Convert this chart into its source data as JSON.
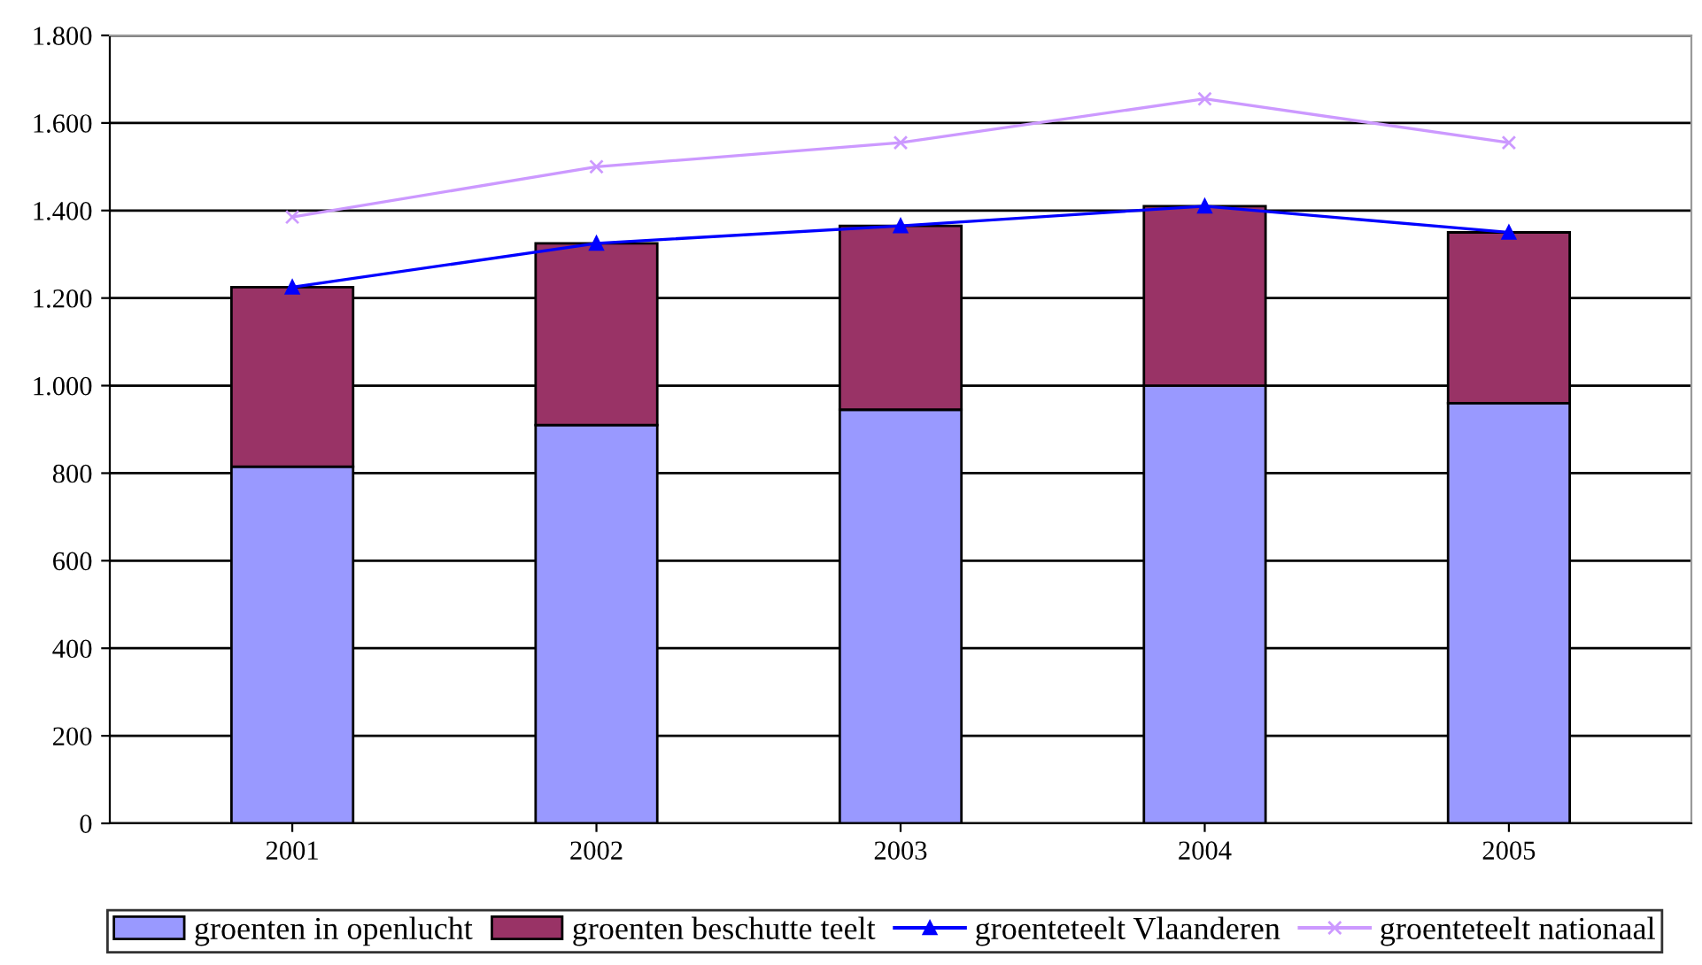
{
  "chart_data": {
    "type": "bar",
    "stacked": true,
    "categories": [
      "2001",
      "2002",
      "2003",
      "2004",
      "2005"
    ],
    "series": [
      {
        "name": "groenten in openlucht",
        "color": "#9999ff",
        "values": [
          815,
          910,
          945,
          1000,
          960
        ]
      },
      {
        "name": "groenten beschutte teelt",
        "color": "#993366",
        "values": [
          410,
          415,
          420,
          410,
          390
        ]
      },
      {
        "name": "groenteteelt Vlaanderen",
        "type": "line",
        "color": "#0000ff",
        "marker": "triangle",
        "values": [
          1225,
          1325,
          1365,
          1410,
          1350
        ]
      },
      {
        "name": "groenteteelt nationaal",
        "type": "line",
        "color": "#cc99ff",
        "marker": "cross",
        "values": [
          1385,
          1500,
          1555,
          1655,
          1555
        ]
      }
    ],
    "ylim": [
      0,
      1800
    ],
    "yticks": [
      0,
      200,
      400,
      600,
      800,
      {
        "value": 1000,
        "label": "1.000"
      },
      {
        "value": 1200,
        "label": "1.200"
      },
      {
        "value": 1400,
        "label": "1.400"
      },
      {
        "value": 1600,
        "label": "1.600"
      },
      {
        "value": 1800,
        "label": "1.800"
      }
    ],
    "grid": "y",
    "legend": "bottom"
  }
}
